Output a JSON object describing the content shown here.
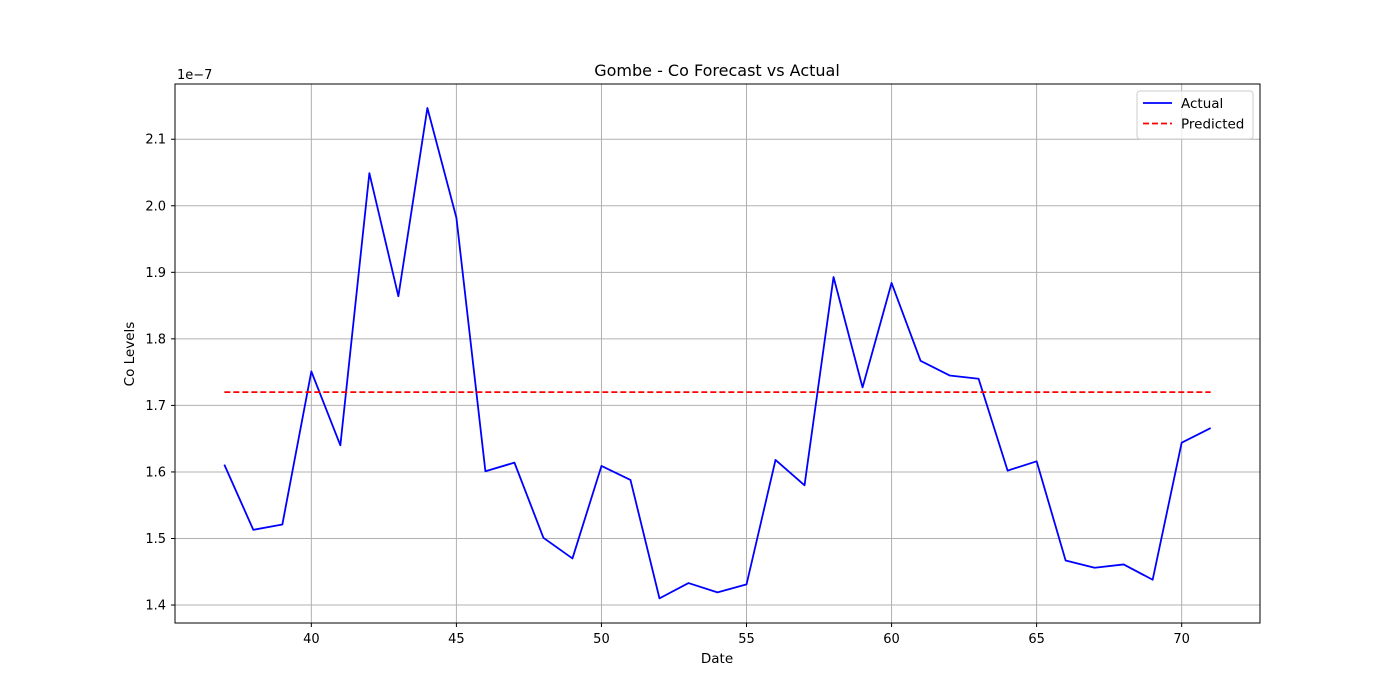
{
  "chart_data": {
    "type": "line",
    "title": "Gombe - Co Forecast vs Actual",
    "xlabel": "Date",
    "ylabel": "Co Levels",
    "y_scale_label": "1e−7",
    "y_scale_factor": 1e-07,
    "xlim": [
      35.3,
      72.7
    ],
    "ylim": [
      1.373,
      2.183
    ],
    "x_ticks": [
      40,
      45,
      50,
      55,
      60,
      65,
      70
    ],
    "y_ticks": [
      1.4,
      1.5,
      1.6,
      1.7,
      1.8,
      1.9,
      2.0,
      2.1
    ],
    "grid": true,
    "legend_position": "top-right",
    "series": [
      {
        "name": "Actual",
        "color": "#0000ff",
        "style": "solid",
        "x": [
          37,
          38,
          39,
          40,
          41,
          42,
          43,
          44,
          45,
          46,
          47,
          48,
          49,
          50,
          51,
          52,
          53,
          54,
          55,
          56,
          57,
          58,
          59,
          60,
          61,
          62,
          63,
          64,
          65,
          66,
          67,
          68,
          69,
          70,
          71
        ],
        "y": [
          1.611,
          1.513,
          1.521,
          1.751,
          1.64,
          2.049,
          1.864,
          2.147,
          1.982,
          1.601,
          1.614,
          1.501,
          1.47,
          1.609,
          1.588,
          1.41,
          1.433,
          1.419,
          1.431,
          1.618,
          1.58,
          1.893,
          1.727,
          1.884,
          1.767,
          1.745,
          1.74,
          1.602,
          1.616,
          1.467,
          1.456,
          1.461,
          1.438,
          1.644,
          1.666
        ]
      },
      {
        "name": "Predicted",
        "color": "#ff0000",
        "style": "dashed",
        "x": [
          37,
          71
        ],
        "y": [
          1.72,
          1.72
        ]
      }
    ]
  }
}
